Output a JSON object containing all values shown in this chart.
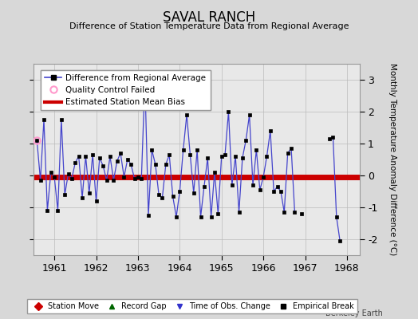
{
  "title": "SAVAL RANCH",
  "subtitle": "Difference of Station Temperature Data from Regional Average",
  "ylabel": "Monthly Temperature Anomaly Difference (°C)",
  "bias_value": -0.05,
  "ylim": [
    -2.5,
    3.5
  ],
  "xlim": [
    1960.5,
    1968.3
  ],
  "background_color": "#d8d8d8",
  "plot_bg_color": "#e8e8e8",
  "line_color": "#4444cc",
  "marker_color": "#000000",
  "bias_color": "#cc0000",
  "qc_fail_color": "#ff99cc",
  "watermark": "Berkeley Earth",
  "time_series": [
    1960.583,
    1960.667,
    1960.75,
    1960.833,
    1960.917,
    1961.0,
    1961.083,
    1961.167,
    1961.25,
    1961.333,
    1961.417,
    1961.5,
    1961.583,
    1961.667,
    1961.75,
    1961.833,
    1961.917,
    1962.0,
    1962.083,
    1962.167,
    1962.25,
    1962.333,
    1962.417,
    1962.5,
    1962.583,
    1962.667,
    1962.75,
    1962.833,
    1962.917,
    1963.0,
    1963.083,
    1963.167,
    1963.25,
    1963.333,
    1963.417,
    1963.5,
    1963.583,
    1963.667,
    1963.75,
    1963.833,
    1963.917,
    1964.0,
    1964.083,
    1964.167,
    1964.25,
    1964.333,
    1964.417,
    1964.5,
    1964.583,
    1964.667,
    1964.75,
    1964.833,
    1964.917,
    1965.0,
    1965.083,
    1965.167,
    1965.25,
    1965.333,
    1965.417,
    1965.5,
    1965.583,
    1965.667,
    1965.75,
    1965.833,
    1965.917,
    1966.0,
    1966.083,
    1966.167,
    1966.25,
    1966.333,
    1966.417,
    1966.5,
    1966.583,
    1966.667,
    1966.75,
    1967.583,
    1967.667,
    1967.75,
    1967.833
  ],
  "values": [
    1.1,
    -0.15,
    1.75,
    -1.1,
    0.1,
    -0.05,
    -1.1,
    1.75,
    -0.6,
    0.05,
    -0.1,
    0.4,
    0.6,
    -0.7,
    0.6,
    -0.55,
    0.65,
    -0.8,
    0.55,
    0.3,
    -0.15,
    0.6,
    -0.15,
    0.45,
    0.7,
    -0.05,
    0.5,
    0.35,
    -0.1,
    -0.05,
    -0.1,
    3.0,
    -1.25,
    0.8,
    0.35,
    -0.6,
    -0.7,
    0.35,
    0.65,
    -0.65,
    -1.3,
    -0.5,
    0.8,
    1.9,
    0.65,
    -0.55,
    0.8,
    -1.3,
    -0.35,
    0.55,
    -1.3,
    0.1,
    -1.2,
    0.6,
    0.65,
    2.0,
    -0.3,
    0.6,
    -1.15,
    0.55,
    1.1,
    1.9,
    -0.3,
    0.8,
    -0.45,
    -0.05,
    0.6,
    1.4,
    -0.5,
    -0.35,
    -0.5,
    -1.15,
    0.7,
    0.85,
    -1.15,
    1.15,
    1.2,
    -1.3,
    -2.05
  ],
  "seg_breaks": [
    75
  ],
  "qc_fail_x": [
    1960.583
  ],
  "qc_fail_y": [
    1.1
  ],
  "isolated_x": [
    1966.917
  ],
  "isolated_y": [
    -1.2
  ],
  "yticks": [
    -2,
    -1,
    0,
    1,
    2,
    3
  ],
  "xticks": [
    1961,
    1962,
    1963,
    1964,
    1965,
    1966,
    1967,
    1968
  ]
}
